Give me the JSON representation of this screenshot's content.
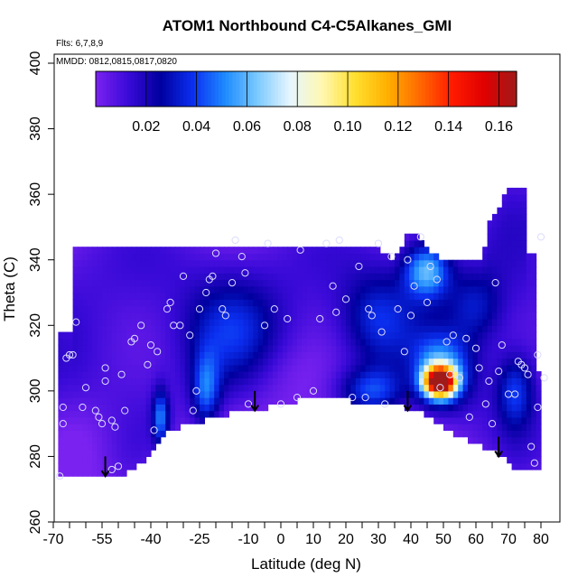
{
  "chart_data": {
    "type": "heatmap",
    "title": "ATOM1 Northbound C4-C5Alkanes_GMI",
    "annotations": {
      "flights": "Flts: 6,7,8,9",
      "dates": "MMDD: 0812,0815,0817,0820"
    },
    "xlabel": "Latitude (deg N)",
    "ylabel": "Theta (C)",
    "xlim": [
      -70,
      80
    ],
    "ylim": [
      260,
      400
    ],
    "x_ticks": [
      -70,
      -55,
      -40,
      -25,
      -10,
      0,
      10,
      20,
      30,
      40,
      50,
      60,
      70,
      80
    ],
    "x_tick_labels": [
      "-70",
      "-55",
      "-40",
      "-25",
      "-10",
      "0",
      "10",
      "20",
      "30",
      "40",
      "50",
      "60",
      "70",
      "80"
    ],
    "x_minor_ticks": [
      -65,
      -60,
      -50,
      -45,
      -35,
      -30,
      -20,
      -15,
      -5,
      5,
      15,
      25,
      35,
      45,
      55,
      65,
      75
    ],
    "y_ticks": [
      260,
      280,
      300,
      320,
      340,
      360,
      380,
      400
    ],
    "y_tick_labels": [
      "260",
      "280",
      "300",
      "320",
      "340",
      "360",
      "380",
      "400"
    ],
    "colorbar": {
      "range": [
        0,
        0.167
      ],
      "ticks": [
        0.02,
        0.04,
        0.06,
        0.08,
        0.1,
        0.12,
        0.14,
        0.16
      ],
      "tick_labels": [
        "0.02",
        "0.04",
        "0.06",
        "0.08",
        "0.10",
        "0.12",
        "0.14",
        "0.16"
      ],
      "colors": [
        "#7a22f0",
        "#3a0ad8",
        "#00009e",
        "#0b2ff0",
        "#1e8bff",
        "#7ccaff",
        "#e6f6ff",
        "#fff7b0",
        "#ffe030",
        "#ffb000",
        "#ff6a00",
        "#ff1c00",
        "#e00000",
        "#a01a1a"
      ]
    },
    "field": {
      "base_value": 0.012,
      "upper_boundary": [
        [
          -68.5,
          312
        ],
        [
          -68.5,
          318
        ],
        [
          -64,
          318
        ],
        [
          -64,
          343
        ],
        [
          -60,
          344
        ],
        [
          30,
          344
        ],
        [
          34,
          340
        ],
        [
          40,
          349
        ],
        [
          50,
          339
        ],
        [
          62,
          339
        ],
        [
          64,
          351
        ],
        [
          70,
          362
        ],
        [
          76,
          362
        ],
        [
          76,
          341
        ],
        [
          79,
          341
        ],
        [
          79,
          305
        ],
        [
          80.5,
          305
        ],
        [
          80.5,
          276
        ]
      ],
      "lower_boundary": [
        [
          -68.5,
          274
        ],
        [
          -62,
          274
        ],
        [
          -58,
          273
        ],
        [
          -48,
          275
        ],
        [
          -44,
          277
        ],
        [
          -34,
          288
        ],
        [
          -23,
          291
        ],
        [
          -12,
          294
        ],
        [
          -4,
          295
        ],
        [
          10,
          298
        ],
        [
          22,
          297
        ],
        [
          30,
          296
        ],
        [
          38,
          295
        ],
        [
          44,
          293
        ],
        [
          55,
          286
        ],
        [
          67,
          281
        ],
        [
          72,
          276
        ],
        [
          80.5,
          276
        ]
      ],
      "hotspots": [
        {
          "lat": 49,
          "theta": 303,
          "value": 0.165,
          "sigma_lat": 3.2,
          "sigma_theta": 3.0
        },
        {
          "lat": 49,
          "theta": 306,
          "value": 0.05,
          "sigma_lat": 6.5,
          "sigma_theta": 7.5
        },
        {
          "lat": 45,
          "theta": 337,
          "value": 0.052,
          "sigma_lat": 5,
          "sigma_theta": 6
        },
        {
          "lat": -23,
          "theta": 300,
          "value": 0.035,
          "sigma_lat": 3,
          "sigma_theta": 8
        },
        {
          "lat": -37,
          "theta": 292,
          "value": 0.04,
          "sigma_lat": 1.8,
          "sigma_theta": 6
        },
        {
          "lat": 28,
          "theta": 300,
          "value": 0.034,
          "sigma_lat": 7,
          "sigma_theta": 5
        },
        {
          "lat": 72,
          "theta": 300,
          "value": 0.03,
          "sigma_lat": 4,
          "sigma_theta": 8
        },
        {
          "lat": -15,
          "theta": 318,
          "value": 0.024,
          "sigma_lat": 10,
          "sigma_theta": 12
        },
        {
          "lat": 30,
          "theta": 322,
          "value": 0.026,
          "sigma_lat": 8,
          "sigma_theta": 10
        },
        {
          "lat": 60,
          "theta": 326,
          "value": 0.022,
          "sigma_lat": 6,
          "sigma_theta": 8
        }
      ],
      "lows": [
        {
          "lat": -60,
          "theta": 285,
          "value": -0.008,
          "sigma_lat": 8,
          "sigma_theta": 10
        },
        {
          "lat": 0,
          "theta": 305,
          "value": -0.007,
          "sigma_lat": 10,
          "sigma_theta": 8
        },
        {
          "lat": 40,
          "theta": 304,
          "value": -0.008,
          "sigma_lat": 4,
          "sigma_theta": 6
        }
      ]
    },
    "observations": [
      [
        -68,
        274
      ],
      [
        -67,
        290
      ],
      [
        -67,
        295
      ],
      [
        -66,
        310
      ],
      [
        -65,
        311
      ],
      [
        -64,
        311
      ],
      [
        -63,
        321
      ],
      [
        -61,
        295
      ],
      [
        -60,
        301
      ],
      [
        -57,
        294
      ],
      [
        -56,
        292
      ],
      [
        -55,
        290
      ],
      [
        -54,
        303
      ],
      [
        -54,
        307
      ],
      [
        -52,
        276
      ],
      [
        -52,
        291
      ],
      [
        -51,
        289
      ],
      [
        -50,
        277
      ],
      [
        -49,
        305
      ],
      [
        -48,
        294
      ],
      [
        -46,
        315
      ],
      [
        -45,
        316
      ],
      [
        -43,
        320
      ],
      [
        -41,
        308
      ],
      [
        -40,
        314
      ],
      [
        -39,
        288
      ],
      [
        -38,
        312
      ],
      [
        -35,
        325
      ],
      [
        -34,
        327
      ],
      [
        -33,
        320
      ],
      [
        -31,
        320
      ],
      [
        -30,
        335
      ],
      [
        -28,
        317
      ],
      [
        -27,
        294
      ],
      [
        -26,
        300
      ],
      [
        -25,
        325
      ],
      [
        -23,
        330
      ],
      [
        -22,
        334
      ],
      [
        -21,
        335
      ],
      [
        -20,
        342
      ],
      [
        -18,
        325
      ],
      [
        -17,
        323
      ],
      [
        -15,
        333
      ],
      [
        -14,
        346
      ],
      [
        -12,
        341
      ],
      [
        -11,
        336
      ],
      [
        -10,
        296
      ],
      [
        -5,
        320
      ],
      [
        -4,
        345
      ],
      [
        -2,
        325
      ],
      [
        0,
        296
      ],
      [
        2,
        322
      ],
      [
        5,
        298
      ],
      [
        6,
        343
      ],
      [
        10,
        300
      ],
      [
        12,
        322
      ],
      [
        14,
        345
      ],
      [
        16,
        332
      ],
      [
        17,
        324
      ],
      [
        18,
        346
      ],
      [
        20,
        328
      ],
      [
        22,
        298
      ],
      [
        24,
        338
      ],
      [
        26,
        298
      ],
      [
        27,
        325
      ],
      [
        28,
        323
      ],
      [
        30,
        345
      ],
      [
        31,
        318
      ],
      [
        32,
        296
      ],
      [
        34,
        341
      ],
      [
        36,
        325
      ],
      [
        38,
        312
      ],
      [
        39,
        340
      ],
      [
        40,
        323
      ],
      [
        41,
        332
      ],
      [
        43,
        347
      ],
      [
        45,
        327
      ],
      [
        46,
        338
      ],
      [
        48,
        334
      ],
      [
        49,
        301
      ],
      [
        51,
        315
      ],
      [
        52,
        305
      ],
      [
        53,
        317
      ],
      [
        55,
        304
      ],
      [
        57,
        316
      ],
      [
        58,
        292
      ],
      [
        60,
        313
      ],
      [
        61,
        307
      ],
      [
        63,
        296
      ],
      [
        64,
        303
      ],
      [
        65,
        290
      ],
      [
        66,
        333
      ],
      [
        67,
        306
      ],
      [
        68,
        314
      ],
      [
        70,
        299
      ],
      [
        72,
        299
      ],
      [
        73,
        309
      ],
      [
        74,
        308
      ],
      [
        75,
        307
      ],
      [
        76,
        305
      ],
      [
        77,
        283
      ],
      [
        78,
        278
      ],
      [
        79,
        295
      ],
      [
        79,
        311
      ],
      [
        80,
        347
      ],
      [
        81,
        304
      ]
    ],
    "arrows": [
      {
        "lat": -54,
        "theta": 280
      },
      {
        "lat": -8,
        "theta": 300
      },
      {
        "lat": 39,
        "theta": 300
      },
      {
        "lat": 67,
        "theta": 286
      }
    ]
  }
}
